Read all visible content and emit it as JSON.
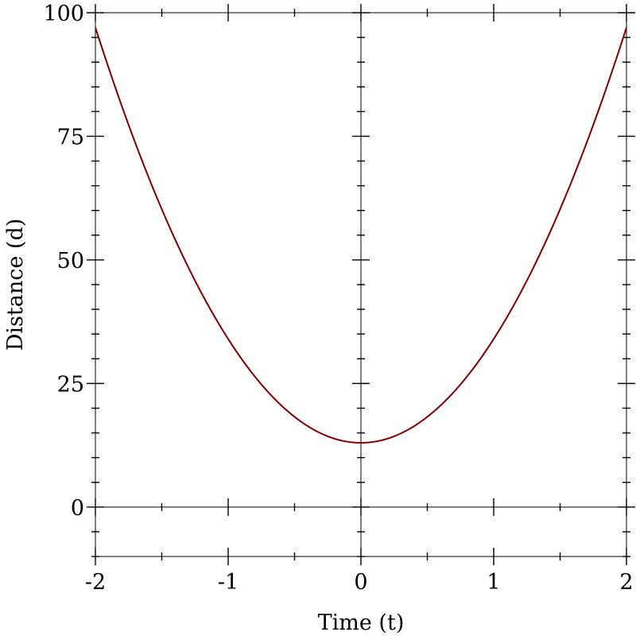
{
  "chart_data": {
    "type": "line",
    "xlabel": "Time (t)",
    "ylabel": "Distance (d)",
    "xlim": [
      -2,
      2
    ],
    "ylim": [
      -10,
      100
    ],
    "x_ticks": [
      "-2",
      "-1",
      "0",
      "1",
      "2"
    ],
    "y_ticks": [
      "0",
      "25",
      "50",
      "75",
      "100"
    ],
    "series": [
      {
        "color": "#7f0000",
        "function": "d = 21*t^2 + 13",
        "x": [
          -2,
          -1.5,
          -1,
          -0.5,
          0,
          0.5,
          1,
          1.5,
          2
        ],
        "values": [
          97,
          60.3,
          34,
          18.3,
          13,
          18.3,
          34,
          60.3,
          97
        ]
      }
    ],
    "grid": false,
    "zero_axes": true
  }
}
